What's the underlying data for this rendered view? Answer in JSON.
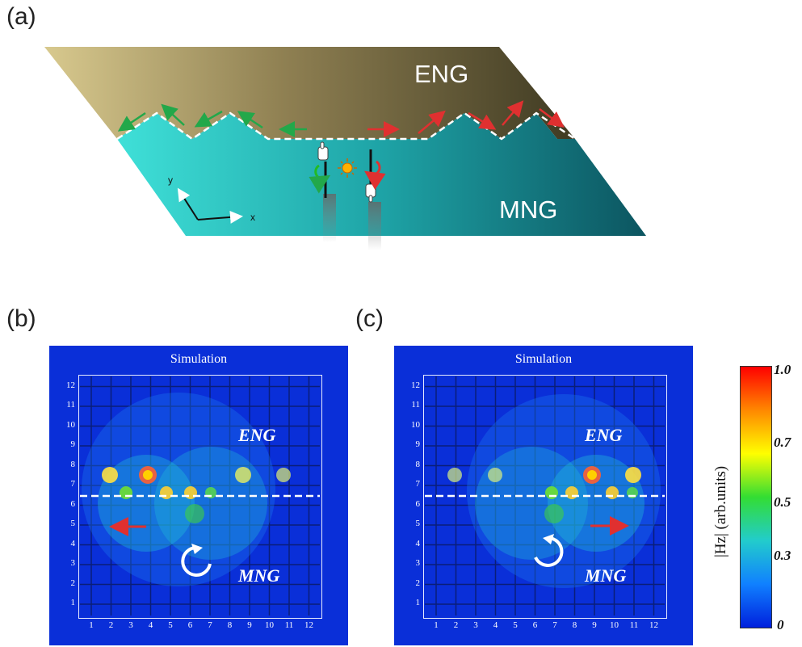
{
  "panels": {
    "a": {
      "label": "(a)",
      "top_material": "ENG",
      "bottom_material": "MNG",
      "axis_x": "x",
      "axis_y": "y"
    },
    "b": {
      "label": "(b)",
      "title": "Simulation",
      "top_material": "ENG",
      "bottom_material": "MNG",
      "direction": "left",
      "rotation": "clockwise"
    },
    "c": {
      "label": "(c)",
      "title": "Simulation",
      "top_material": "ENG",
      "bottom_material": "MNG",
      "direction": "right",
      "rotation": "counterclockwise"
    }
  },
  "axis_ticks": [
    "1",
    "2",
    "3",
    "4",
    "5",
    "6",
    "7",
    "8",
    "9",
    "10",
    "11",
    "12"
  ],
  "colorbar": {
    "label": "|Hz| (arb.units)",
    "ticks": [
      "1.0",
      "0.7",
      "0.5",
      "0.3",
      "0"
    ],
    "colors": [
      "#ff0000",
      "#ff8800",
      "#ffff00",
      "#33dd33",
      "#22cccc",
      "#1080ff",
      "#0020dd"
    ]
  },
  "colors": {
    "left_arrows": "#22a84a",
    "right_arrows": "#e03030",
    "field_bg": "#0a2fd8"
  }
}
